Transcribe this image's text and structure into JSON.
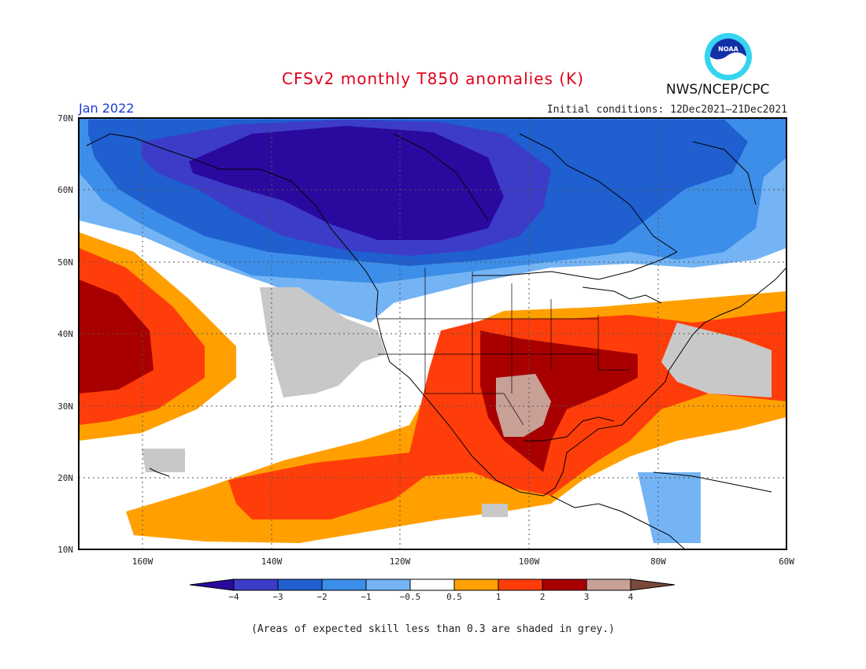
{
  "header": {
    "title": "CFSv2 monthly T850 anomalies (K)",
    "agency": "NWS/NCEP/CPC",
    "logo_text": "NOAA",
    "month": "Jan 2022",
    "initial_conditions": "Initial conditions: 12Dec2021–21Dec2021"
  },
  "axes": {
    "lat_labels": [
      "70N",
      "60N",
      "50N",
      "40N",
      "30N",
      "20N",
      "10N"
    ],
    "lon_labels": [
      "160W",
      "140W",
      "120W",
      "100W",
      "80W",
      "60W"
    ]
  },
  "legend": {
    "tick_labels": [
      "−4",
      "−3",
      "−2",
      "−1",
      "−0.5",
      "0.5",
      "1",
      "2",
      "3",
      "4"
    ],
    "colors": [
      "#2a0a9e",
      "#3c3cc8",
      "#1f5fcf",
      "#3c8ee8",
      "#74b4f4",
      "#ffffff",
      "#ffa000",
      "#ff3d0a",
      "#a80000",
      "#c9a096",
      "#7a4a3a"
    ]
  },
  "footnote": "(Areas of expected skill less than 0.3 are shaded in grey.)"
}
